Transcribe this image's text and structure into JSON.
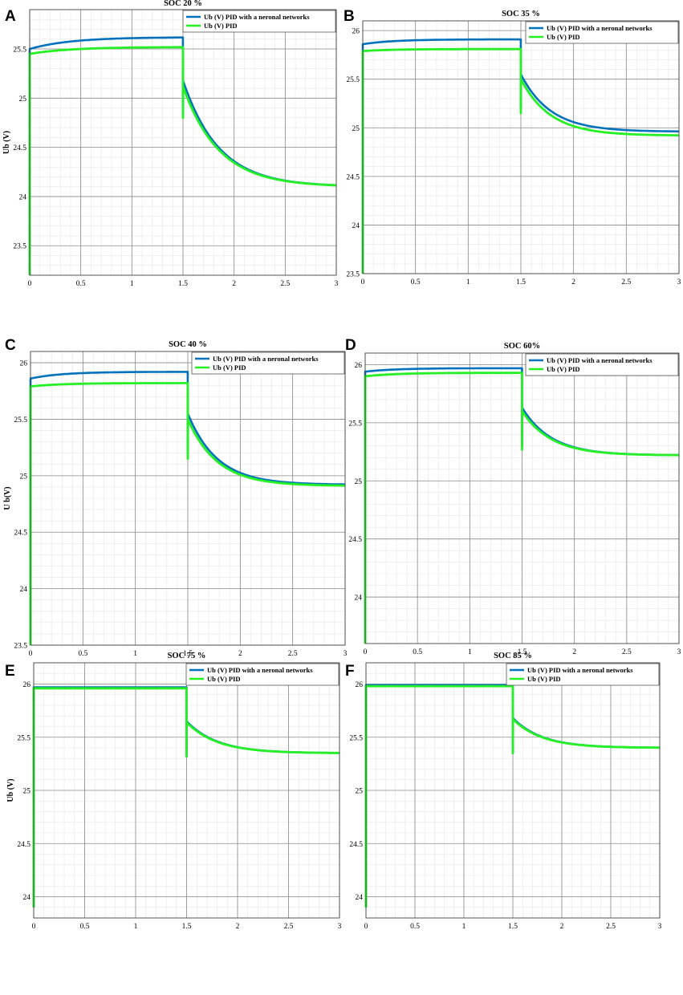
{
  "chart_data": [
    {
      "panel": "A",
      "type": "line",
      "title": "SOC 20 %",
      "xlabel": "",
      "ylabel": "Ub (V)",
      "xlim": [
        0,
        3
      ],
      "ylim": [
        23.2,
        25.9
      ],
      "xticks": [
        0,
        0.5,
        1,
        1.5,
        2,
        2.5,
        3
      ],
      "xtick_labels": [
        "0",
        "0.5",
        "1",
        "1.5",
        "2",
        "2.5",
        "3"
      ],
      "yticks": [
        23.5,
        24,
        24.5,
        25,
        25.5
      ],
      "ytick_labels": [
        "23.5",
        "24",
        "24.5",
        "25",
        "25.5"
      ],
      "grid": true,
      "minor_grid": true,
      "legend_position": "top-right",
      "series": [
        {
          "name": "Ub (V) PID with a neronal networks",
          "color": "#0072BD",
          "pre": {
            "start": 25.5,
            "end": 25.62,
            "tau": 0.4
          },
          "post": {
            "t0": 1.5,
            "v0": 25.18,
            "final": 24.1,
            "tau": 0.35
          },
          "dip": {
            "start": 23.2,
            "step": 24.9
          }
        },
        {
          "name": "Ub (V) PID",
          "color": "#24F024",
          "pre": {
            "start": 25.45,
            "end": 25.52,
            "tau": 0.4
          },
          "post": {
            "t0": 1.5,
            "v0": 25.12,
            "final": 24.1,
            "tau": 0.35
          },
          "dip": {
            "start": 23.2,
            "step": 24.8
          }
        }
      ]
    },
    {
      "panel": "B",
      "type": "line",
      "title": "SOC 35 %",
      "xlabel": "",
      "ylabel": "",
      "xlim": [
        0,
        3
      ],
      "ylim": [
        23.5,
        26.1
      ],
      "xticks": [
        0,
        0.5,
        1,
        1.5,
        2,
        2.5,
        3
      ],
      "xtick_labels": [
        "0",
        "0.5",
        "1",
        "1.5",
        "2",
        "2.5",
        "3"
      ],
      "yticks": [
        23.5,
        24,
        24.5,
        25,
        25.5,
        26
      ],
      "ytick_labels": [
        "23.5",
        "24",
        "24.5",
        "25",
        "25.5",
        "26"
      ],
      "grid": true,
      "minor_grid": true,
      "legend_position": "top-right",
      "series": [
        {
          "name": "Ub (V) PID with a neronal networks",
          "color": "#0072BD",
          "pre": {
            "start": 25.86,
            "end": 25.91,
            "tau": 0.3
          },
          "post": {
            "t0": 1.5,
            "v0": 25.55,
            "final": 24.96,
            "tau": 0.28
          },
          "dip": {
            "start": 23.5,
            "step": 25.2
          }
        },
        {
          "name": "Ub (V) PID",
          "color": "#24F024",
          "pre": {
            "start": 25.79,
            "end": 25.81,
            "tau": 0.3
          },
          "post": {
            "t0": 1.5,
            "v0": 25.5,
            "final": 24.92,
            "tau": 0.28
          },
          "dip": {
            "start": 23.5,
            "step": 25.15
          }
        }
      ]
    },
    {
      "panel": "C",
      "type": "line",
      "title": "SOC 40 %",
      "xlabel": "",
      "ylabel": "U b(V)",
      "xlim": [
        0,
        3
      ],
      "ylim": [
        23.5,
        26.1
      ],
      "xticks": [
        0,
        0.5,
        1,
        1.5,
        2,
        2.5,
        3
      ],
      "xtick_labels": [
        "0",
        "0.5",
        "1",
        "1.5",
        "2",
        "2.5",
        "3"
      ],
      "yticks": [
        23.5,
        24,
        24.5,
        25,
        25.5,
        26
      ],
      "ytick_labels": [
        "23.5",
        "24",
        "24.5",
        "25",
        "25.5",
        "26"
      ],
      "grid": true,
      "minor_grid": true,
      "legend_position": "top-right",
      "series": [
        {
          "name": "Ub (V) PID with a neronal networks",
          "color": "#0072BD",
          "pre": {
            "start": 25.86,
            "end": 25.92,
            "tau": 0.3
          },
          "post": {
            "t0": 1.5,
            "v0": 25.55,
            "final": 24.92,
            "tau": 0.28
          },
          "dip": {
            "start": 23.5,
            "step": 25.2
          }
        },
        {
          "name": "Ub (V) PID",
          "color": "#24F024",
          "pre": {
            "start": 25.79,
            "end": 25.82,
            "tau": 0.3
          },
          "post": {
            "t0": 1.5,
            "v0": 25.5,
            "final": 24.91,
            "tau": 0.28
          },
          "dip": {
            "start": 23.5,
            "step": 25.15
          }
        }
      ]
    },
    {
      "panel": "D",
      "type": "line",
      "title": "SOC 60%",
      "xlabel": "",
      "ylabel": "",
      "xlim": [
        0,
        3
      ],
      "ylim": [
        23.6,
        26.1
      ],
      "xticks": [
        0,
        0.5,
        1,
        1.5,
        2,
        2.5,
        3
      ],
      "xtick_labels": [
        "0",
        "0.5",
        "1",
        "1.5",
        "2",
        "2.5",
        "3"
      ],
      "yticks": [
        24,
        24.5,
        25,
        25.5,
        26
      ],
      "ytick_labels": [
        "24",
        "24.5",
        "25",
        "25.5",
        "26"
      ],
      "grid": true,
      "minor_grid": true,
      "legend_position": "top-right",
      "series": [
        {
          "name": "Ub (V) PID with a neronal networks",
          "color": "#0072BD",
          "pre": {
            "start": 25.94,
            "end": 25.97,
            "tau": 0.3
          },
          "post": {
            "t0": 1.5,
            "v0": 25.63,
            "final": 25.22,
            "tau": 0.28
          },
          "dip": {
            "start": 23.6,
            "step": 25.3
          }
        },
        {
          "name": "Ub (V) PID",
          "color": "#24F024",
          "pre": {
            "start": 25.9,
            "end": 25.93,
            "tau": 0.3
          },
          "post": {
            "t0": 1.5,
            "v0": 25.6,
            "final": 25.22,
            "tau": 0.28
          },
          "dip": {
            "start": 23.6,
            "step": 25.27
          }
        }
      ]
    },
    {
      "panel": "E",
      "type": "line",
      "title": "SOC 75 %",
      "xlabel": "",
      "ylabel": "Ub (V)",
      "xlim": [
        0,
        3
      ],
      "ylim": [
        23.8,
        26.2
      ],
      "xticks": [
        0,
        0.5,
        1,
        1.5,
        2,
        2.5,
        3
      ],
      "xtick_labels": [
        "0",
        "0.5",
        "1",
        "1.5",
        "2",
        "2.5",
        "3"
      ],
      "yticks": [
        24,
        24.5,
        25,
        25.5,
        26
      ],
      "ytick_labels": [
        "24",
        "24.5",
        "25",
        "25.5",
        "26"
      ],
      "grid": true,
      "minor_grid": true,
      "legend_position": "top-right",
      "series": [
        {
          "name": "Ub (V) PID with a neronal networks",
          "color": "#0072BD",
          "pre": {
            "start": 25.97,
            "end": 25.97,
            "tau": 0.3
          },
          "post": {
            "t0": 1.5,
            "v0": 25.65,
            "final": 25.35,
            "tau": 0.3
          },
          "dip": {
            "start": 23.9,
            "step": 25.32
          }
        },
        {
          "name": "Ub (V) PID",
          "color": "#24F024",
          "pre": {
            "start": 25.96,
            "end": 25.96,
            "tau": 0.3
          },
          "post": {
            "t0": 1.5,
            "v0": 25.64,
            "final": 25.35,
            "tau": 0.3
          },
          "dip": {
            "start": 23.9,
            "step": 25.32
          }
        }
      ]
    },
    {
      "panel": "F",
      "type": "line",
      "title": "SOC 85 %",
      "xlabel": "",
      "ylabel": "",
      "xlim": [
        0,
        3
      ],
      "ylim": [
        23.8,
        26.2
      ],
      "xticks": [
        0,
        0.5,
        1,
        1.5,
        2,
        2.5,
        3
      ],
      "xtick_labels": [
        "0",
        "0.5",
        "1",
        "1.5",
        "2",
        "2.5",
        "3"
      ],
      "yticks": [
        24,
        24.5,
        25,
        25.5,
        26
      ],
      "ytick_labels": [
        "24",
        "24.5",
        "25",
        "25.5",
        "26"
      ],
      "grid": true,
      "minor_grid": true,
      "legend_position": "top-right",
      "series": [
        {
          "name": "Ub (V) PID with a neronal networks",
          "color": "#0072BD",
          "pre": {
            "start": 25.99,
            "end": 25.99,
            "tau": 0.3
          },
          "post": {
            "t0": 1.5,
            "v0": 25.68,
            "final": 25.4,
            "tau": 0.3
          },
          "dip": {
            "start": 23.9,
            "step": 25.35
          }
        },
        {
          "name": "Ub (V) PID",
          "color": "#24F024",
          "pre": {
            "start": 25.98,
            "end": 25.98,
            "tau": 0.3
          },
          "post": {
            "t0": 1.5,
            "v0": 25.67,
            "final": 25.4,
            "tau": 0.3
          },
          "dip": {
            "start": 23.9,
            "step": 25.35
          }
        }
      ]
    }
  ]
}
